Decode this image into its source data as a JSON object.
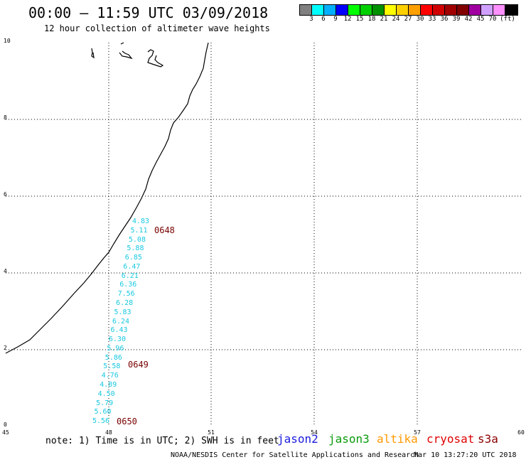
{
  "title": "00:00 – 11:59 UTC 03/09/2018",
  "subtitle": "12 hour collection of altimeter wave heights",
  "legend": {
    "colors": [
      "#808080",
      "#00ffff",
      "#00b0ff",
      "#0000ff",
      "#00ff00",
      "#00d000",
      "#009000",
      "#ffff00",
      "#ffd000",
      "#ffa000",
      "#ff0000",
      "#d00000",
      "#a00000",
      "#800000",
      "#a000a0",
      "#d0a0ff",
      "#ff90ff",
      "#000000"
    ],
    "labels": [
      "3",
      "6",
      "9",
      "12",
      "15",
      "18",
      "21",
      "24",
      "27",
      "30",
      "33",
      "36",
      "39",
      "42",
      "45",
      "70",
      "(ft)"
    ]
  },
  "axes": {
    "y_ticks": [
      "10",
      "8",
      "6",
      "4",
      "2",
      "0"
    ],
    "x_ticks": [
      "45",
      "48",
      "51",
      "54",
      "57",
      "60"
    ]
  },
  "swh_readings": [
    "4.83",
    "5.11",
    "5.08",
    "5.88",
    "6.85",
    "6.47",
    "6.21",
    "6.36",
    "7.56",
    "6.28",
    "5.83",
    "6.24",
    "6.43",
    "6.30",
    "5.96",
    "5.86",
    "5.58",
    "4.76",
    "4.89",
    "4.50",
    "5.79",
    "5.60",
    "5.56"
  ],
  "pass_times": [
    "0648",
    "0649",
    "0650"
  ],
  "note": "note: 1) Time is in UTC; 2) SWH is in feet",
  "satellites": [
    {
      "name": "jason2",
      "color": "#1a1adc"
    },
    {
      "name": "jason3",
      "color": "#0a9a0a"
    },
    {
      "name": "altika",
      "color": "#ff9900"
    },
    {
      "name": "cryosat",
      "color": "#e00000"
    },
    {
      "name": "s3a",
      "color": "#8b0000"
    }
  ],
  "credit": "NOAA/NESDIS Center for Satellite Applications and Research",
  "timestamp": "Mar 10 13:27:20 UTC 2018"
}
